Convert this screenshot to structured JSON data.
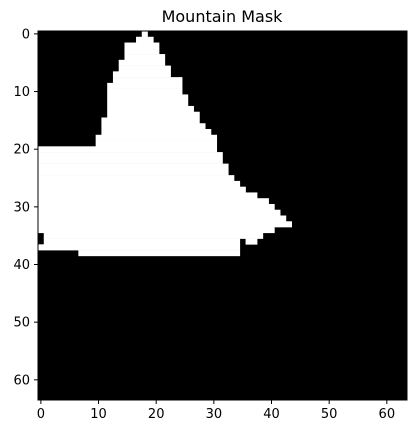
{
  "chart_data": {
    "type": "heatmap",
    "title": "Mountain Mask",
    "xlabel": "",
    "ylabel": "",
    "grid": false,
    "xlim": [
      -0.5,
      63.5
    ],
    "ylim": [
      63.5,
      -0.5
    ],
    "xticks": [
      0,
      10,
      20,
      30,
      40,
      50,
      60
    ],
    "yticks": [
      0,
      10,
      20,
      30,
      40,
      50,
      60
    ],
    "xtick_labels": [
      "0",
      "10",
      "20",
      "30",
      "40",
      "50",
      "60"
    ],
    "ytick_labels": [
      "0",
      "10",
      "20",
      "30",
      "40",
      "50",
      "60"
    ],
    "colormap": {
      "0": "#000000",
      "1": "#ffffff"
    },
    "shape": [
      64,
      64
    ],
    "mask_runs": [
      {
        "row": 0,
        "start": 18,
        "end": 18
      },
      {
        "row": 1,
        "start": 17,
        "end": 19
      },
      {
        "row": 2,
        "start": 15,
        "end": 20
      },
      {
        "row": 3,
        "start": 15,
        "end": 20
      },
      {
        "row": 4,
        "start": 15,
        "end": 21
      },
      {
        "row": 5,
        "start": 14,
        "end": 21
      },
      {
        "row": 6,
        "start": 14,
        "end": 22
      },
      {
        "row": 7,
        "start": 13,
        "end": 22
      },
      {
        "row": 8,
        "start": 13,
        "end": 24
      },
      {
        "row": 9,
        "start": 12,
        "end": 24
      },
      {
        "row": 10,
        "start": 12,
        "end": 24
      },
      {
        "row": 11,
        "start": 12,
        "end": 25
      },
      {
        "row": 12,
        "start": 12,
        "end": 25
      },
      {
        "row": 13,
        "start": 12,
        "end": 26
      },
      {
        "row": 14,
        "start": 12,
        "end": 27
      },
      {
        "row": 15,
        "start": 11,
        "end": 27
      },
      {
        "row": 16,
        "start": 11,
        "end": 28
      },
      {
        "row": 17,
        "start": 11,
        "end": 29
      },
      {
        "row": 18,
        "start": 10,
        "end": 30
      },
      {
        "row": 19,
        "start": 10,
        "end": 30
      },
      {
        "row": 20,
        "start": 0,
        "end": 30
      },
      {
        "row": 21,
        "start": 0,
        "end": 31
      },
      {
        "row": 22,
        "start": 0,
        "end": 31
      },
      {
        "row": 23,
        "start": 0,
        "end": 32
      },
      {
        "row": 24,
        "start": 0,
        "end": 32
      },
      {
        "row": 25,
        "start": 0,
        "end": 33
      },
      {
        "row": 26,
        "start": 0,
        "end": 34
      },
      {
        "row": 27,
        "start": 0,
        "end": 35
      },
      {
        "row": 28,
        "start": 0,
        "end": 37
      },
      {
        "row": 29,
        "start": 0,
        "end": 39
      },
      {
        "row": 30,
        "start": 0,
        "end": 40
      },
      {
        "row": 31,
        "start": 0,
        "end": 41
      },
      {
        "row": 32,
        "start": 0,
        "end": 42
      },
      {
        "row": 33,
        "start": 0,
        "end": 43
      },
      {
        "row": 34,
        "start": 0,
        "end": 40
      },
      {
        "row": 35,
        "start": 1,
        "end": 38
      },
      {
        "row": 36,
        "start": 1,
        "end": 34
      },
      {
        "row": 36,
        "start": 36,
        "end": 37
      },
      {
        "row": 37,
        "start": 0,
        "end": 34
      },
      {
        "row": 38,
        "start": 7,
        "end": 34
      }
    ]
  }
}
